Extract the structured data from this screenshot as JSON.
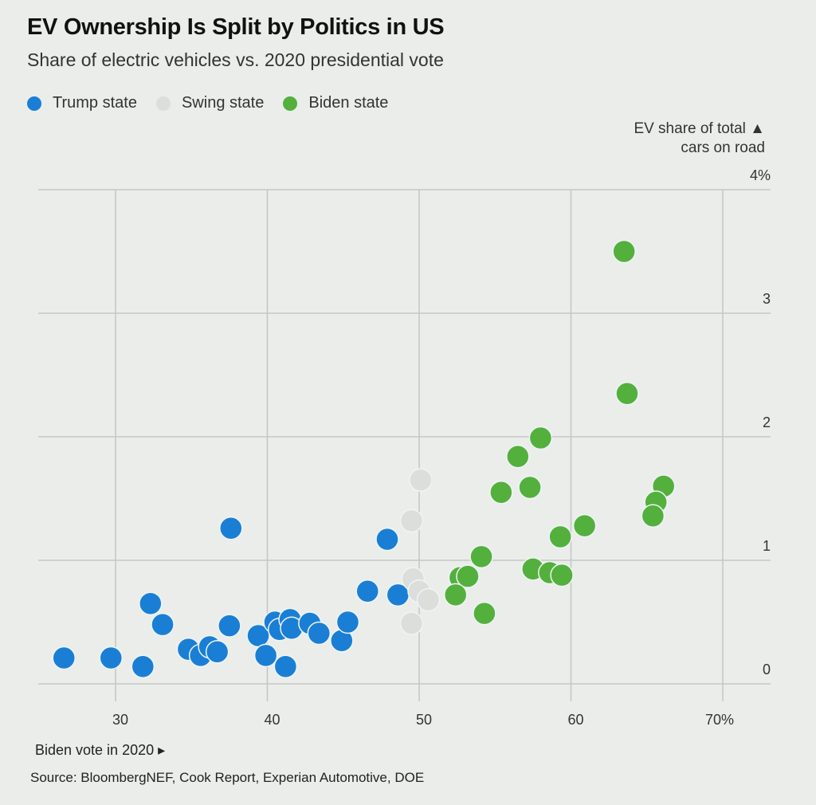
{
  "title": "EV Ownership Is Split by Politics in US",
  "subtitle": "Share of electric vehicles vs. 2020 presidential vote",
  "legend": [
    {
      "label": "Trump state",
      "color": "#1a7fd4",
      "icon": "circle-icon"
    },
    {
      "label": "Swing state",
      "color": "#dcdedc",
      "icon": "circle-icon"
    },
    {
      "label": "Biden state",
      "color": "#53b03c",
      "icon": "circle-icon"
    }
  ],
  "y_axis_label": [
    "EV share of total ▲",
    "cars on road"
  ],
  "x_axis_label": "Biden vote in 2020 ▸",
  "source": "Source: BloombergNEF, Cook Report, Experian Automotive, DOE",
  "chart_data": {
    "type": "scatter",
    "title": "EV Ownership Is Split by Politics in US",
    "subtitle": "Share of electric vehicles vs. 2020 presidential vote",
    "xlabel": "Biden vote in 2020",
    "ylabel": "EV share of total cars on road",
    "xlim": [
      24.5,
      72
    ],
    "ylim": [
      0,
      4
    ],
    "x_ticks": [
      30,
      40,
      50,
      60,
      70
    ],
    "x_tick_labels": [
      "30",
      "40",
      "50",
      "60",
      "70%"
    ],
    "y_ticks": [
      0,
      1,
      2,
      3,
      4
    ],
    "y_tick_labels": [
      "0",
      "1",
      "2",
      "3",
      "4%"
    ],
    "grid": true,
    "legend_position": "top-left",
    "series": [
      {
        "name": "Trump state",
        "color": "#1a7fd4",
        "points": [
          [
            26.6,
            0.21
          ],
          [
            29.7,
            0.21
          ],
          [
            31.8,
            0.14
          ],
          [
            32.3,
            0.65
          ],
          [
            33.1,
            0.48
          ],
          [
            37.6,
            1.26
          ],
          [
            37.5,
            0.47
          ],
          [
            34.8,
            0.28
          ],
          [
            35.6,
            0.23
          ],
          [
            36.2,
            0.3
          ],
          [
            36.7,
            0.26
          ],
          [
            39.4,
            0.39
          ],
          [
            39.9,
            0.23
          ],
          [
            41.2,
            0.14
          ],
          [
            40.5,
            0.5
          ],
          [
            40.8,
            0.44
          ],
          [
            41.5,
            0.52
          ],
          [
            41.6,
            0.45
          ],
          [
            42.8,
            0.49
          ],
          [
            43.4,
            0.41
          ],
          [
            44.9,
            0.35
          ],
          [
            45.3,
            0.5
          ],
          [
            46.6,
            0.75
          ],
          [
            47.9,
            1.17
          ],
          [
            48.6,
            0.72
          ]
        ]
      },
      {
        "name": "Swing state",
        "color": "#dcdedc",
        "points": [
          [
            50.1,
            1.65
          ],
          [
            49.5,
            1.32
          ],
          [
            49.6,
            0.85
          ],
          [
            50.0,
            0.75
          ],
          [
            50.6,
            0.68
          ],
          [
            49.5,
            0.49
          ]
        ]
      },
      {
        "name": "Biden state",
        "color": "#53b03c",
        "points": [
          [
            63.5,
            3.5
          ],
          [
            63.7,
            2.35
          ],
          [
            58.0,
            1.99
          ],
          [
            56.5,
            1.84
          ],
          [
            55.4,
            1.55
          ],
          [
            57.3,
            1.59
          ],
          [
            60.9,
            1.28
          ],
          [
            59.3,
            1.19
          ],
          [
            66.1,
            1.6
          ],
          [
            65.6,
            1.47
          ],
          [
            65.4,
            1.36
          ],
          [
            54.1,
            1.03
          ],
          [
            52.7,
            0.86
          ],
          [
            53.2,
            0.87
          ],
          [
            52.4,
            0.72
          ],
          [
            54.3,
            0.57
          ],
          [
            57.5,
            0.93
          ],
          [
            58.6,
            0.9
          ],
          [
            59.4,
            0.88
          ]
        ]
      }
    ]
  }
}
